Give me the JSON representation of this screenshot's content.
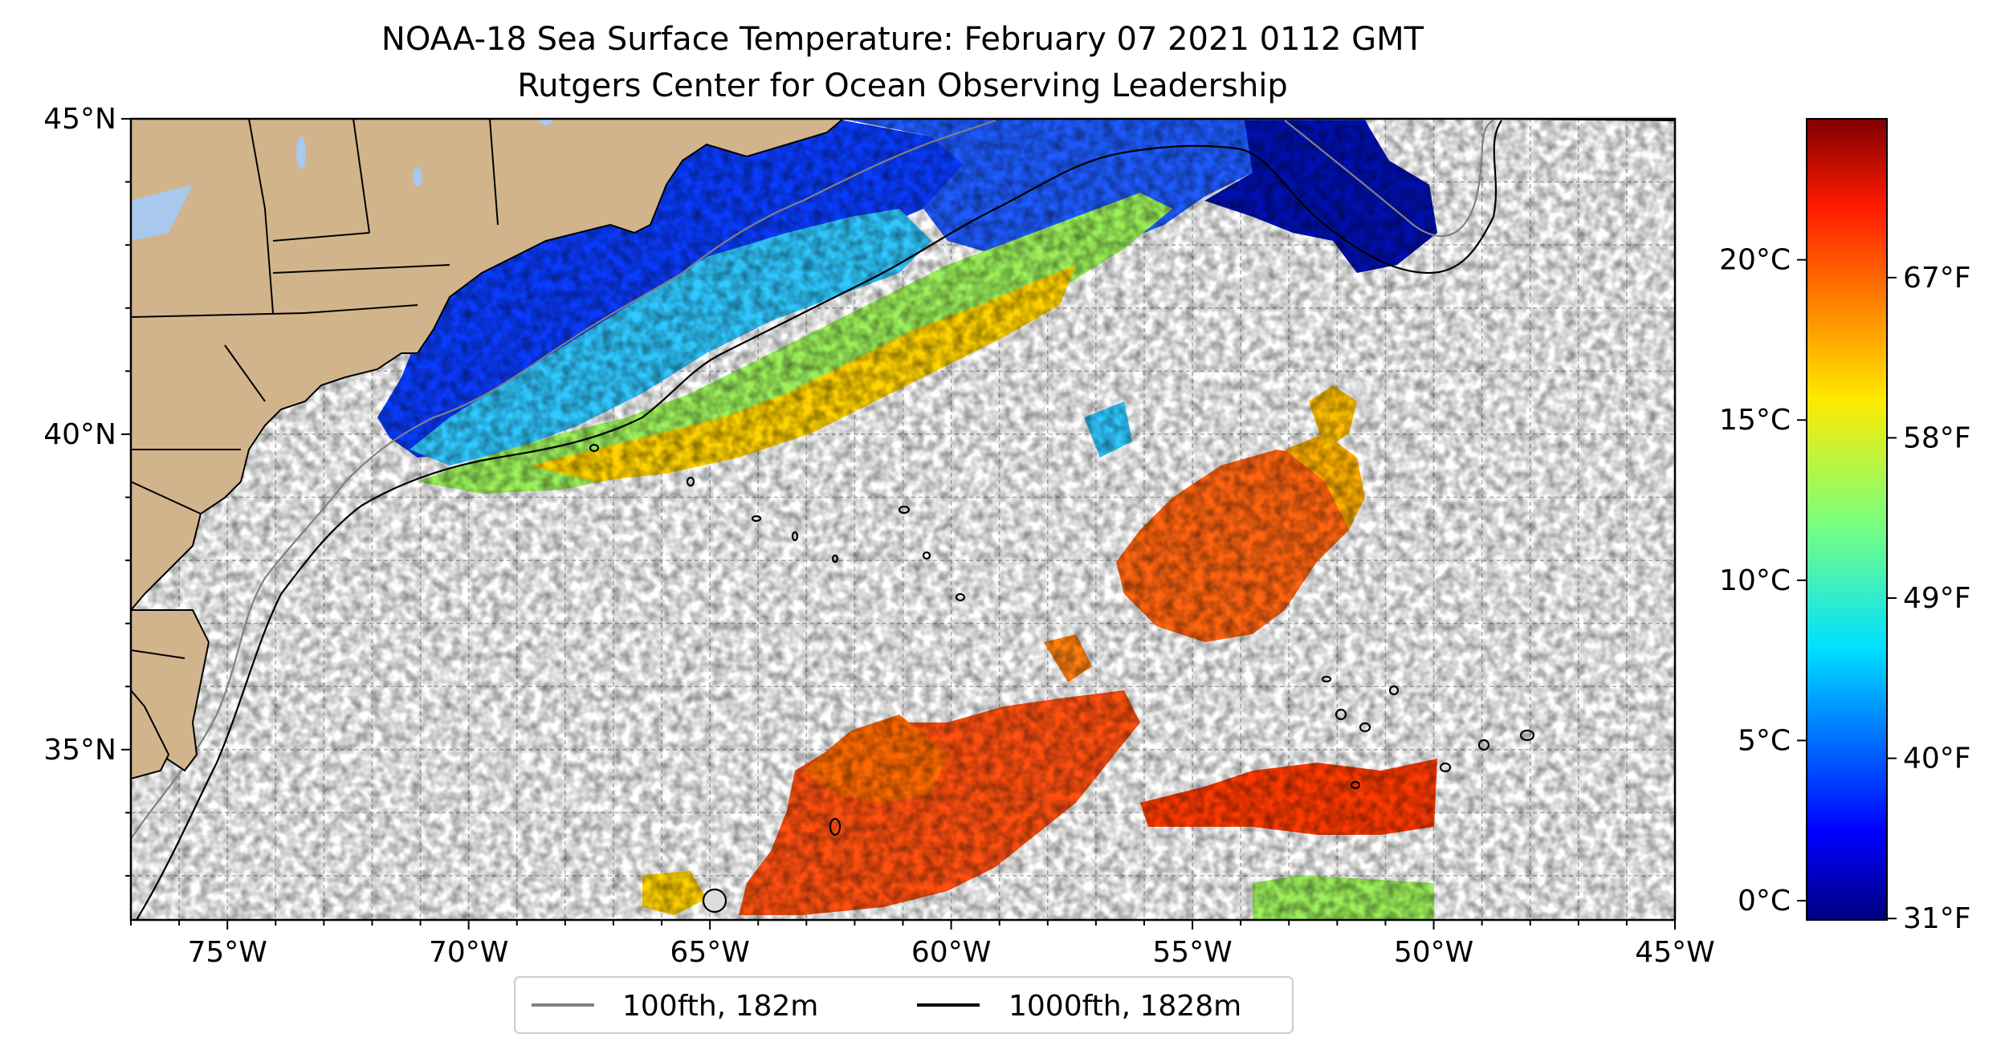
{
  "title": {
    "line1": "NOAA-18 Sea Surface Temperature: February 07 2021 0112 GMT",
    "line2": "Rutgers Center for Ocean Observing Leadership"
  },
  "map": {
    "lon_range": [
      -77,
      -45
    ],
    "lat_range": [
      32.3,
      45
    ],
    "x_ticks": [
      {
        "value": -75,
        "label": "75°W"
      },
      {
        "value": -70,
        "label": "70°W"
      },
      {
        "value": -65,
        "label": "65°W"
      },
      {
        "value": -60,
        "label": "60°W"
      },
      {
        "value": -55,
        "label": "55°W"
      },
      {
        "value": -50,
        "label": "50°W"
      },
      {
        "value": -45,
        "label": "45°W"
      }
    ],
    "y_ticks": [
      {
        "value": 35,
        "label": "35°N"
      },
      {
        "value": 40,
        "label": "40°N"
      },
      {
        "value": 45,
        "label": "45°N"
      }
    ],
    "grid": true,
    "land_color": "#d2b48c",
    "lake_color": "#a8c8ee"
  },
  "colorbar": {
    "celsius_range": [
      -0.6,
      24.4
    ],
    "celsius_ticks": [
      {
        "value": 0,
        "label": "0°C"
      },
      {
        "value": 5,
        "label": "5°C"
      },
      {
        "value": 10,
        "label": "10°C"
      },
      {
        "value": 15,
        "label": "15°C"
      },
      {
        "value": 20,
        "label": "20°C"
      }
    ],
    "fahrenheit_ticks": [
      {
        "value": 31,
        "label": "31°F"
      },
      {
        "value": 40,
        "label": "40°F"
      },
      {
        "value": 49,
        "label": "49°F"
      },
      {
        "value": 58,
        "label": "58°F"
      },
      {
        "value": 67,
        "label": "67°F"
      }
    ],
    "colormap": "jet"
  },
  "legend": {
    "placement": "bottom-center",
    "items": [
      {
        "label": "100fth, 182m",
        "color": "#808080"
      },
      {
        "label": "1000fth, 1828m",
        "color": "#000000"
      }
    ]
  }
}
